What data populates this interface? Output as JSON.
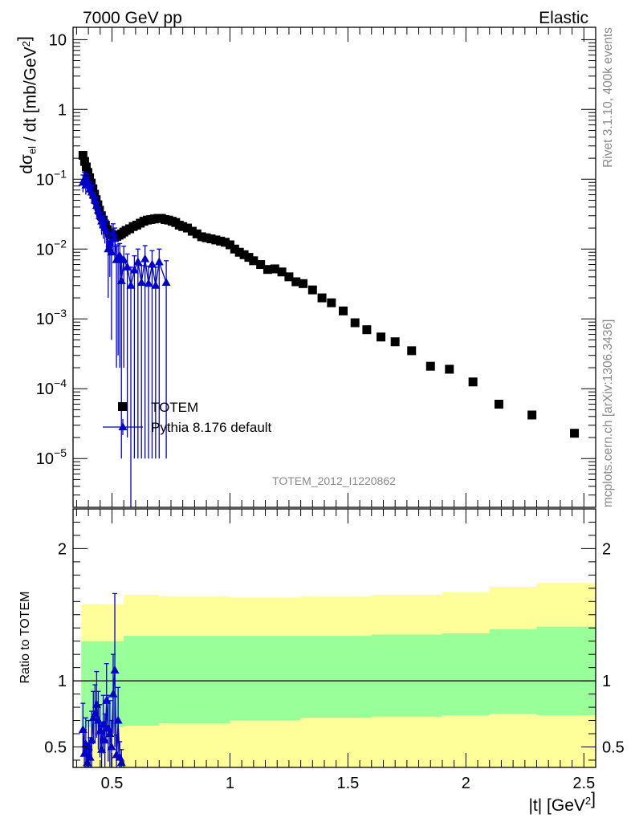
{
  "header": {
    "left": "7000 GeV pp",
    "right": "Elastic"
  },
  "side": {
    "rivet": "Rivet 3.1.10,  400k events",
    "mcplots": "mcplots.cern.ch [arXiv:1306.3436]"
  },
  "watermark": "TOTEM_2012_I1220862",
  "colors": {
    "data": "#000000",
    "mc": "#0000cc",
    "band_inner": "#99ff99",
    "band_outer": "#ffff99"
  },
  "chart_data": [
    {
      "type": "scatter",
      "panel": "main",
      "ylabel": "dσ_el / dt [mb/GeV^2]",
      "yscale": "log",
      "xlim": [
        0.335,
        2.55
      ],
      "ylim": [
        2e-06,
        15
      ],
      "yticks": [
        {
          "value": 10,
          "mant": "10",
          "exp": ""
        },
        {
          "value": 1,
          "mant": "1",
          "exp": ""
        },
        {
          "value": 0.1,
          "mant": "10",
          "exp": "−1"
        },
        {
          "value": 0.01,
          "mant": "10",
          "exp": "−2"
        },
        {
          "value": 0.001,
          "mant": "10",
          "exp": "−3"
        },
        {
          "value": 0.0001,
          "mant": "10",
          "exp": "−4"
        },
        {
          "value": 1e-05,
          "mant": "10",
          "exp": "−5"
        }
      ],
      "legend": [
        {
          "label": "TOTEM",
          "marker": "square"
        },
        {
          "label": "Pythia 8.176 default",
          "marker": "triangle"
        }
      ],
      "series": [
        {
          "name": "TOTEM",
          "x": [
            0.377,
            0.384,
            0.391,
            0.398,
            0.405,
            0.412,
            0.419,
            0.426,
            0.433,
            0.44,
            0.447,
            0.455,
            0.463,
            0.472,
            0.481,
            0.49,
            0.5,
            0.51,
            0.52,
            0.53,
            0.54,
            0.55,
            0.56,
            0.575,
            0.59,
            0.605,
            0.62,
            0.635,
            0.65,
            0.665,
            0.68,
            0.695,
            0.71,
            0.725,
            0.74,
            0.755,
            0.77,
            0.785,
            0.8,
            0.82,
            0.84,
            0.86,
            0.88,
            0.9,
            0.92,
            0.94,
            0.96,
            0.98,
            1.0,
            1.02,
            1.04,
            1.06,
            1.08,
            1.1,
            1.13,
            1.16,
            1.19,
            1.22,
            1.25,
            1.28,
            1.31,
            1.35,
            1.39,
            1.43,
            1.48,
            1.53,
            1.58,
            1.64,
            1.7,
            1.77,
            1.85,
            1.93,
            2.03,
            2.14,
            2.28,
            2.46
          ],
          "y": [
            0.22,
            0.18,
            0.15,
            0.125,
            0.105,
            0.088,
            0.073,
            0.061,
            0.051,
            0.043,
            0.036,
            0.03,
            0.026,
            0.022,
            0.019,
            0.017,
            0.016,
            0.015,
            0.0152,
            0.0158,
            0.0165,
            0.0175,
            0.0185,
            0.0195,
            0.021,
            0.022,
            0.0235,
            0.025,
            0.026,
            0.0265,
            0.027,
            0.0275,
            0.0275,
            0.0265,
            0.026,
            0.025,
            0.024,
            0.022,
            0.021,
            0.02,
            0.018,
            0.0165,
            0.015,
            0.0145,
            0.014,
            0.0135,
            0.013,
            0.0125,
            0.0115,
            0.01,
            0.009,
            0.0083,
            0.0076,
            0.0068,
            0.006,
            0.0051,
            0.0052,
            0.0047,
            0.004,
            0.0034,
            0.0032,
            0.0026,
            0.002,
            0.0017,
            0.0013,
            0.00088,
            0.0007,
            0.00055,
            0.00047,
            0.00035,
            0.00021,
            0.00019,
            0.000125,
            6e-05,
            4.2e-05,
            2.3e-05
          ]
        },
        {
          "name": "Pythia 8.176 default",
          "x": [
            0.377,
            0.383,
            0.389,
            0.395,
            0.401,
            0.407,
            0.414,
            0.421,
            0.428,
            0.435,
            0.442,
            0.449,
            0.456,
            0.463,
            0.47,
            0.477,
            0.484,
            0.491,
            0.498,
            0.505,
            0.512,
            0.519,
            0.526,
            0.533,
            0.54,
            0.55,
            0.565,
            0.58,
            0.595,
            0.61,
            0.625,
            0.64,
            0.655,
            0.67,
            0.685,
            0.7,
            0.73
          ],
          "y": [
            0.09,
            0.1,
            0.082,
            0.095,
            0.085,
            0.072,
            0.065,
            0.06,
            0.05,
            0.042,
            0.036,
            0.03,
            0.025,
            0.022,
            0.02,
            0.018,
            0.01,
            0.012,
            0.009,
            0.017,
            0.014,
            0.007,
            0.0075,
            0.008,
            0.0035,
            0.007,
            0.0055,
            0.003,
            0.005,
            0.0065,
            0.0033,
            0.0072,
            0.0032,
            0.006,
            0.003,
            0.0065,
            0.0033
          ],
          "yerr_up": [
            0.025,
            0.025,
            0.022,
            0.025,
            0.022,
            0.02,
            0.018,
            0.017,
            0.015,
            0.013,
            0.011,
            0.01,
            0.009,
            0.008,
            0.008,
            0.008,
            0.005,
            0.005,
            0.005,
            0.006,
            0.006,
            0.004,
            0.004,
            0.004,
            0.003,
            0.004,
            0.003,
            0.0025,
            0.003,
            0.0035,
            0.0025,
            0.004,
            0.0025,
            0.0035,
            0.0025,
            0.0035,
            0.0035
          ],
          "yerr_down": [
            0.025,
            0.025,
            0.022,
            0.025,
            0.022,
            0.02,
            0.018,
            0.017,
            0.015,
            0.013,
            0.011,
            0.01,
            0.009,
            0.008,
            0.008,
            0.008,
            0.008,
            0.008,
            0.0085,
            0.008,
            0.007,
            0.0068,
            0.0072,
            0.0078,
            0.00349,
            0.0068,
            0.00548,
            0.003,
            0.00499,
            0.00649,
            0.00329,
            0.00719,
            0.00319,
            0.00599,
            0.00299,
            0.00649,
            0.00329
          ]
        }
      ]
    },
    {
      "type": "scatter",
      "panel": "ratio",
      "ylabel": "Ratio to TOTEM",
      "xlabel": "|t| [GeV^2]",
      "xlim": [
        0.335,
        2.55
      ],
      "ylim": [
        0.345,
        2.3
      ],
      "yticks": [
        {
          "value": 0.5,
          "label": "0.5"
        },
        {
          "value": 1,
          "label": "1"
        },
        {
          "value": 2,
          "label": "2"
        }
      ],
      "xticks": [
        {
          "value": 0.5,
          "label": "0.5"
        },
        {
          "value": 1,
          "label": "1"
        },
        {
          "value": 1.5,
          "label": "1.5"
        },
        {
          "value": 2,
          "label": "2"
        },
        {
          "value": 2.5,
          "label": "2.5"
        }
      ],
      "reference": 1,
      "bands": {
        "x": [
          0.37,
          0.55,
          0.7,
          1.0,
          1.3,
          1.6,
          1.9,
          2.1,
          2.3,
          2.55
        ],
        "outer_up": [
          1.58,
          1.65,
          1.64,
          1.63,
          1.64,
          1.65,
          1.67,
          1.71,
          1.74,
          1.75
        ],
        "inner_up": [
          1.3,
          1.34,
          1.34,
          1.34,
          1.34,
          1.35,
          1.36,
          1.39,
          1.41,
          1.43
        ],
        "inner_lo": [
          0.65,
          0.66,
          0.68,
          0.7,
          0.72,
          0.73,
          0.74,
          0.75,
          0.74,
          0.72
        ],
        "outer_lo": [
          0.33,
          0.33,
          0.33,
          0.33,
          0.33,
          0.33,
          0.33,
          0.33,
          0.33,
          0.33
        ]
      },
      "series": [
        {
          "name": "Pythia 8.176 default",
          "x": [
            0.377,
            0.383,
            0.389,
            0.395,
            0.401,
            0.407,
            0.414,
            0.421,
            0.428,
            0.435,
            0.442,
            0.449,
            0.456,
            0.463,
            0.47,
            0.477,
            0.484,
            0.491,
            0.498,
            0.505,
            0.512,
            0.519,
            0.526,
            0.533,
            0.54
          ],
          "y": [
            0.63,
            0.45,
            0.52,
            0.38,
            0.5,
            0.42,
            0.55,
            0.72,
            0.75,
            0.82,
            0.7,
            0.62,
            0.48,
            0.67,
            0.55,
            0.85,
            0.64,
            0.6,
            0.5,
            0.9,
            1.08,
            0.44,
            0.7,
            0.42,
            0.38
          ],
          "yerr": [
            0.2,
            0.18,
            0.2,
            0.15,
            0.2,
            0.15,
            0.22,
            0.2,
            0.22,
            0.25,
            0.22,
            0.2,
            0.18,
            0.22,
            0.2,
            0.28,
            0.25,
            0.25,
            0.2,
            0.3,
            0.58,
            0.15,
            0.25,
            0.12,
            0.1
          ]
        }
      ]
    }
  ]
}
